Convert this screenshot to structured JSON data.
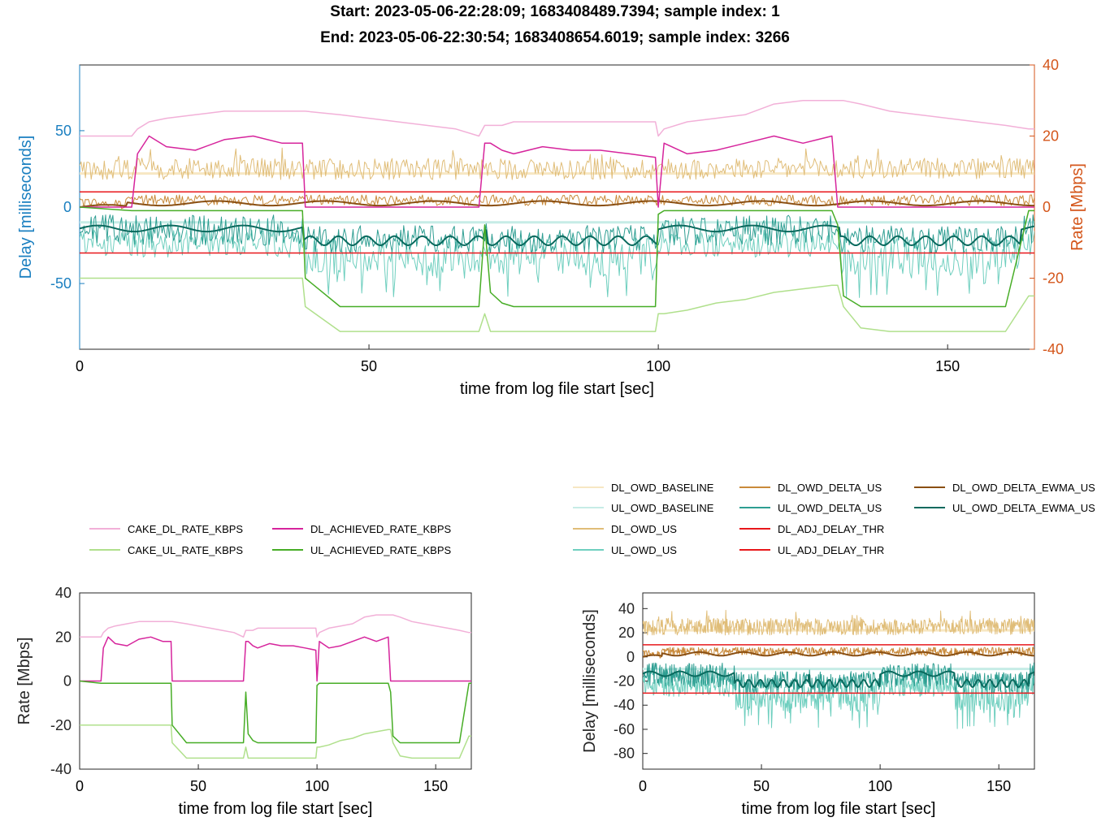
{
  "header": {
    "line1": "Start: 2023-05-06-22:28:09; 1683408489.7394; sample index: 1",
    "line2": "End:   2023-05-06-22:30:54; 1683408654.6019; sample index: 3266"
  },
  "colors": {
    "cake_dl_rate": "#f2b0d8",
    "dl_achieved": "#d6249c",
    "cake_ul_rate": "#b0e08c",
    "ul_achieved": "#47ad26",
    "dl_owd_baseline": "#f7e7c3",
    "ul_owd_baseline": "#c6ece6",
    "dl_owd_us": "#e0bd78",
    "ul_owd_us": "#6fcfbf",
    "dl_owd_delta_us": "#c98a3a",
    "ul_owd_delta_us": "#2e9e92",
    "dl_owd_delta_ewma": "#8a4f12",
    "ul_owd_delta_ewma": "#0a6a5e",
    "thr": "#e8171b",
    "left_axis": "#1a7fc0",
    "right_axis": "#d4561b"
  },
  "legend_rate": [
    "CAKE_DL_RATE_KBPS",
    "DL_ACHIEVED_RATE_KBPS",
    "CAKE_UL_RATE_KBPS",
    "UL_ACHIEVED_RATE_KBPS"
  ],
  "legend_delay": [
    "DL_OWD_BASELINE",
    "DL_OWD_DELTA_US",
    "DL_OWD_DELTA_EWMA_US",
    "UL_OWD_BASELINE",
    "UL_OWD_DELTA_US",
    "UL_OWD_DELTA_EWMA_US",
    "DL_OWD_US",
    "DL_ADJ_DELAY_THR",
    "UL_OWD_US",
    "UL_ADJ_DELAY_THR"
  ],
  "chart_data": [
    {
      "type": "line",
      "xlabel": "time from log file start [sec]",
      "ylabel_left": "Delay [milliseconds]",
      "ylabel_right": "Rate [Mbps]",
      "xlim": [
        0,
        165
      ],
      "ylim_left": [
        -93,
        93
      ],
      "ylim_right": [
        -40,
        40
      ],
      "xticks": [
        0,
        50,
        100,
        150
      ],
      "yticks_left": [
        -50,
        0,
        50
      ],
      "yticks_right": [
        -40,
        -20,
        0,
        20,
        40
      ],
      "grid": false,
      "series_rate": {
        "x": [
          0,
          9,
          10,
          12,
          15,
          20,
          25,
          30,
          35,
          38.5,
          39,
          45,
          50,
          55,
          60,
          65,
          69,
          70,
          71,
          73,
          75,
          80,
          85,
          90,
          95,
          99.5,
          100,
          101,
          105,
          110,
          115,
          120,
          125,
          130,
          131,
          132,
          135,
          140,
          145,
          150,
          155,
          160,
          164,
          165
        ],
        "CAKE_DL_RATE_KBPS": [
          20,
          20,
          22,
          24,
          25,
          26,
          27,
          27,
          27,
          27,
          27,
          26,
          25,
          24,
          23,
          22,
          20,
          23,
          23,
          23,
          24,
          24,
          24,
          24,
          24,
          24,
          20,
          22,
          24,
          25,
          26,
          29,
          30,
          30,
          30,
          30,
          29,
          27,
          26,
          25,
          24,
          23,
          22,
          22
        ],
        "DL_ACHIEVED_RATE_KBPS": [
          0,
          0,
          15,
          20,
          17,
          16,
          19,
          20,
          18,
          18,
          0,
          0,
          0,
          0,
          0,
          0,
          0,
          18,
          18,
          16,
          15,
          17,
          16,
          16,
          15,
          14,
          0,
          18,
          15,
          16,
          18,
          20,
          18,
          20,
          0,
          0,
          0,
          0,
          0,
          0,
          0,
          0,
          0,
          0
        ],
        "CAKE_UL_RATE_KBPS": [
          -20,
          -20,
          -20,
          -20,
          -20,
          -20,
          -20,
          -20,
          -20,
          -20,
          -28,
          -35,
          -35,
          -35,
          -35,
          -35,
          -35,
          -30,
          -35,
          -35,
          -35,
          -35,
          -35,
          -35,
          -35,
          -35,
          -30,
          -30,
          -29,
          -27,
          -26,
          -24,
          -23,
          -22,
          -22,
          -28,
          -34,
          -35,
          -35,
          -35,
          -35,
          -35,
          -25,
          -25
        ],
        "UL_ACHIEVED_RATE_KBPS": [
          0,
          -1,
          -1,
          -1,
          -1,
          -1,
          -1,
          -1,
          -1,
          -1,
          -20,
          -28,
          -28,
          -28,
          -28,
          -28,
          -28,
          -5,
          -24,
          -27,
          -28,
          -28,
          -28,
          -28,
          -28,
          -28,
          -2,
          -1,
          -1,
          -1,
          -1,
          -1,
          -1,
          -1,
          -5,
          -25,
          -28,
          -28,
          -28,
          -28,
          -28,
          -28,
          -1,
          -1
        ]
      },
      "series_delay": {
        "DL_ADJ_DELAY_THR": 10,
        "UL_ADJ_DELAY_THR": -30
      }
    },
    {
      "type": "line",
      "xlabel": "time from log file start [sec]",
      "ylabel": "Rate [Mbps]",
      "xlim": [
        0,
        165
      ],
      "ylim": [
        -40,
        40
      ],
      "xticks": [
        0,
        50,
        100,
        150
      ],
      "yticks": [
        -40,
        -20,
        0,
        20,
        40
      ]
    },
    {
      "type": "line",
      "xlabel": "time from log file start [sec]",
      "ylabel": "Delay [milliseconds]",
      "xlim": [
        0,
        165
      ],
      "ylim": [
        -93,
        53
      ],
      "xticks": [
        0,
        50,
        100,
        150
      ],
      "yticks": [
        -80,
        -60,
        -40,
        -20,
        0,
        20,
        40
      ]
    }
  ]
}
